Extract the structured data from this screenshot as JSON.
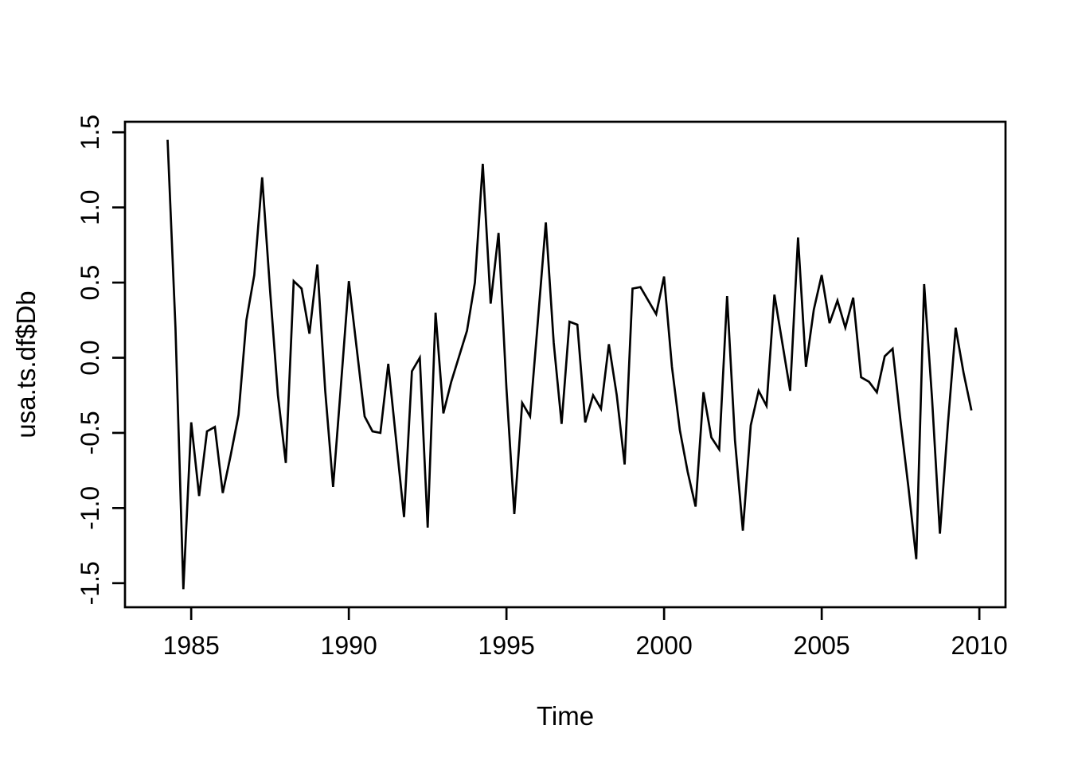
{
  "figure": {
    "background": "#ffffff",
    "line_color": "#000000",
    "axis_color": "#000000"
  },
  "chart_data": {
    "type": "line",
    "title": "",
    "xlabel": "Time",
    "ylabel": "usa.ts.df$Db",
    "legend": null,
    "grid": false,
    "series_name": "usa.ts.df$Db",
    "frequency": 4,
    "x_start": 1984.25,
    "x_step": 0.25,
    "x_end": 2009.75,
    "xlim": [
      1982.9,
      2010.83
    ],
    "ylim": [
      -1.66,
      1.57
    ],
    "x_ticks": [
      1985,
      1990,
      1995,
      2000,
      2005,
      2010
    ],
    "x_tick_labels": [
      "1985",
      "1990",
      "1995",
      "2000",
      "2005",
      "2010"
    ],
    "y_ticks": [
      -1.5,
      -1.0,
      -0.5,
      0.0,
      0.5,
      1.0,
      1.5
    ],
    "y_tick_labels": [
      "-1.5",
      "-1.0",
      "-0.5",
      "0.0",
      "0.5",
      "1.0",
      "1.5"
    ],
    "values": [
      1.45,
      0.2,
      -1.54,
      -0.43,
      -0.92,
      -0.49,
      -0.46,
      -0.9,
      -0.65,
      -0.38,
      0.25,
      0.55,
      1.2,
      0.45,
      -0.25,
      -0.7,
      0.51,
      0.46,
      0.16,
      0.62,
      -0.22,
      -0.86,
      -0.18,
      0.51,
      0.06,
      -0.39,
      -0.49,
      -0.5,
      -0.04,
      -0.55,
      -1.06,
      -0.09,
      0.0,
      -1.13,
      0.3,
      -0.37,
      -0.16,
      0.01,
      0.18,
      0.5,
      1.29,
      0.36,
      0.83,
      -0.2,
      -1.04,
      -0.3,
      -0.39,
      0.25,
      0.9,
      0.1,
      -0.44,
      0.24,
      0.22,
      -0.43,
      -0.25,
      -0.34,
      0.09,
      -0.25,
      -0.71,
      0.46,
      0.47,
      0.38,
      0.29,
      0.54,
      -0.06,
      -0.48,
      -0.76,
      -0.99,
      -0.23,
      -0.53,
      -0.61,
      0.41,
      -0.55,
      -1.15,
      -0.45,
      -0.22,
      -0.32,
      0.42,
      0.1,
      -0.22,
      0.8,
      -0.06,
      0.32,
      0.55,
      0.23,
      0.38,
      0.2,
      0.4,
      -0.13,
      -0.16,
      -0.23,
      0.01,
      0.06,
      -0.42,
      -0.86,
      -1.34,
      0.49,
      -0.27,
      -1.17,
      -0.45,
      0.2,
      -0.1,
      -0.35
    ]
  }
}
